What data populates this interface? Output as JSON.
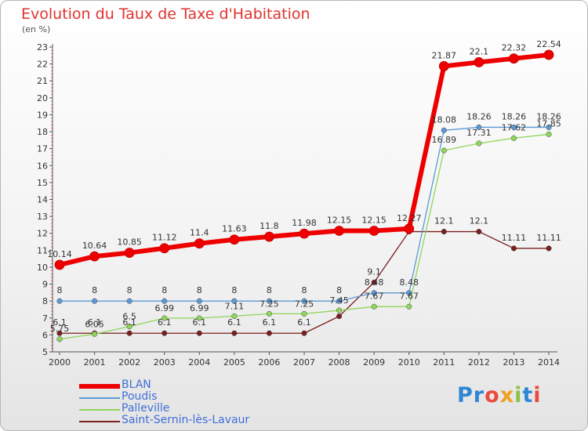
{
  "header": {
    "title": "Evolution du Taux de Taxe d'Habitation",
    "unit": "(en %)"
  },
  "logo": {
    "text": "Proxiti",
    "letters": [
      "P",
      "r",
      "o",
      "x",
      "i",
      "t",
      "i"
    ],
    "colors": [
      "#2e86d4",
      "#2e86d4",
      "#e94b3c",
      "#f0a020",
      "#8bc34a",
      "#2e86d4",
      "#e94b3c"
    ]
  },
  "chart_data": {
    "type": "line",
    "x": [
      2000,
      2001,
      2002,
      2003,
      2004,
      2005,
      2006,
      2007,
      2008,
      2009,
      2010,
      2011,
      2012,
      2013,
      2014
    ],
    "ylim": [
      5,
      23
    ],
    "yticks": [
      5,
      6,
      7,
      8,
      9,
      10,
      11,
      12,
      13,
      14,
      15,
      16,
      17,
      18,
      19,
      20,
      21,
      22,
      23
    ],
    "grid": false,
    "legend_position": "bottom-left",
    "series": [
      {
        "name": "BLAN",
        "color": "#ee0000",
        "values": [
          10.14,
          10.64,
          10.85,
          11.12,
          11.4,
          11.63,
          11.8,
          11.98,
          12.15,
          12.15,
          12.27,
          21.87,
          22.1,
          22.32,
          22.54
        ],
        "labels": [
          "10.14",
          "10.64",
          "10.85",
          "11.12",
          "11.4",
          "11.63",
          "11.8",
          "11.98",
          "12.15",
          "12.15",
          "12.27",
          "21.87",
          "22.1",
          "22.32",
          "22.54"
        ]
      },
      {
        "name": "Poudis",
        "color": "#5b9ad5",
        "values": [
          8,
          8,
          8,
          8,
          8,
          8,
          8,
          8,
          8,
          8.48,
          8.48,
          18.08,
          18.26,
          18.26,
          18.26
        ],
        "labels": [
          "8",
          "8",
          "8",
          "8",
          "8",
          "8",
          "8",
          "8",
          "8",
          "8.48",
          "8.48",
          "18.08",
          "18.26",
          "18.26",
          "18.26"
        ]
      },
      {
        "name": "Palleville",
        "color": "#8fd65a",
        "values": [
          5.75,
          6.05,
          6.5,
          6.99,
          6.99,
          7.11,
          7.25,
          7.25,
          7.45,
          7.67,
          7.67,
          16.89,
          17.31,
          17.62,
          17.85
        ],
        "labels": [
          "5.75",
          "6.05",
          "6.5",
          "6.99",
          "6.99",
          "7.11",
          "7.25",
          "7.25",
          "7.45",
          "7.67",
          "7.67",
          "16.89",
          "17.31",
          "17.62",
          "17.85"
        ]
      },
      {
        "name": "Saint-Sernin-lès-Lavaur",
        "color": "#7a1f1f",
        "values": [
          6.1,
          6.1,
          6.1,
          6.1,
          6.1,
          6.1,
          6.1,
          6.1,
          7.1,
          9.1,
          12.1,
          12.1,
          12.1,
          11.11,
          11.11
        ],
        "labels": [
          "6.1",
          "6.1",
          "6.1",
          "6.1",
          "6.1",
          "6.1",
          "6.1",
          "6.1",
          "",
          "9.1",
          "",
          "12.1",
          "12.1",
          "11.11",
          "11.11"
        ]
      }
    ]
  }
}
